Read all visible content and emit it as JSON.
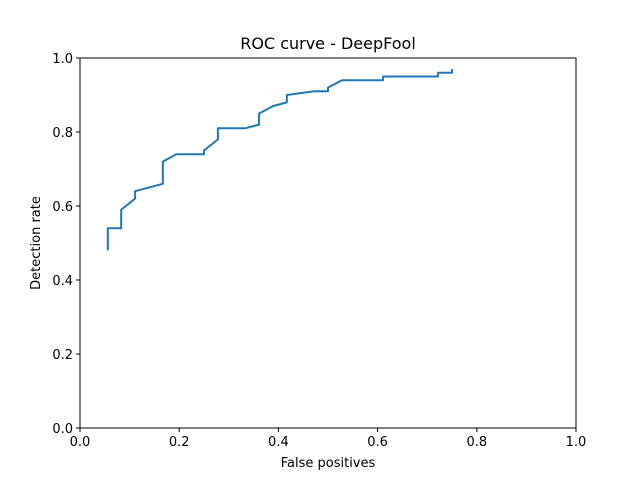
{
  "chart_data": {
    "type": "line",
    "title": "ROC curve - DeepFool",
    "xlabel": "False positives",
    "ylabel": "Detection rate",
    "xlim": [
      0.0,
      1.0
    ],
    "ylim": [
      0.0,
      1.0
    ],
    "xticks": [
      "0.0",
      "0.2",
      "0.4",
      "0.6",
      "0.8",
      "1.0"
    ],
    "yticks": [
      "0.0",
      "0.2",
      "0.4",
      "0.6",
      "0.8",
      "1.0"
    ],
    "grid": false,
    "series": [
      {
        "color": "#1f77b4",
        "x": [
          0.056,
          0.056,
          0.083,
          0.083,
          0.111,
          0.111,
          0.167,
          0.167,
          0.194,
          0.25,
          0.25,
          0.278,
          0.278,
          0.333,
          0.361,
          0.361,
          0.389,
          0.417,
          0.417,
          0.472,
          0.5,
          0.5,
          0.528,
          0.611,
          0.611,
          0.722,
          0.722,
          0.75,
          0.75
        ],
        "y": [
          0.48,
          0.54,
          0.54,
          0.59,
          0.62,
          0.64,
          0.66,
          0.72,
          0.74,
          0.74,
          0.75,
          0.78,
          0.81,
          0.81,
          0.82,
          0.85,
          0.87,
          0.88,
          0.9,
          0.91,
          0.91,
          0.92,
          0.94,
          0.94,
          0.95,
          0.95,
          0.96,
          0.96,
          0.97
        ]
      }
    ]
  }
}
